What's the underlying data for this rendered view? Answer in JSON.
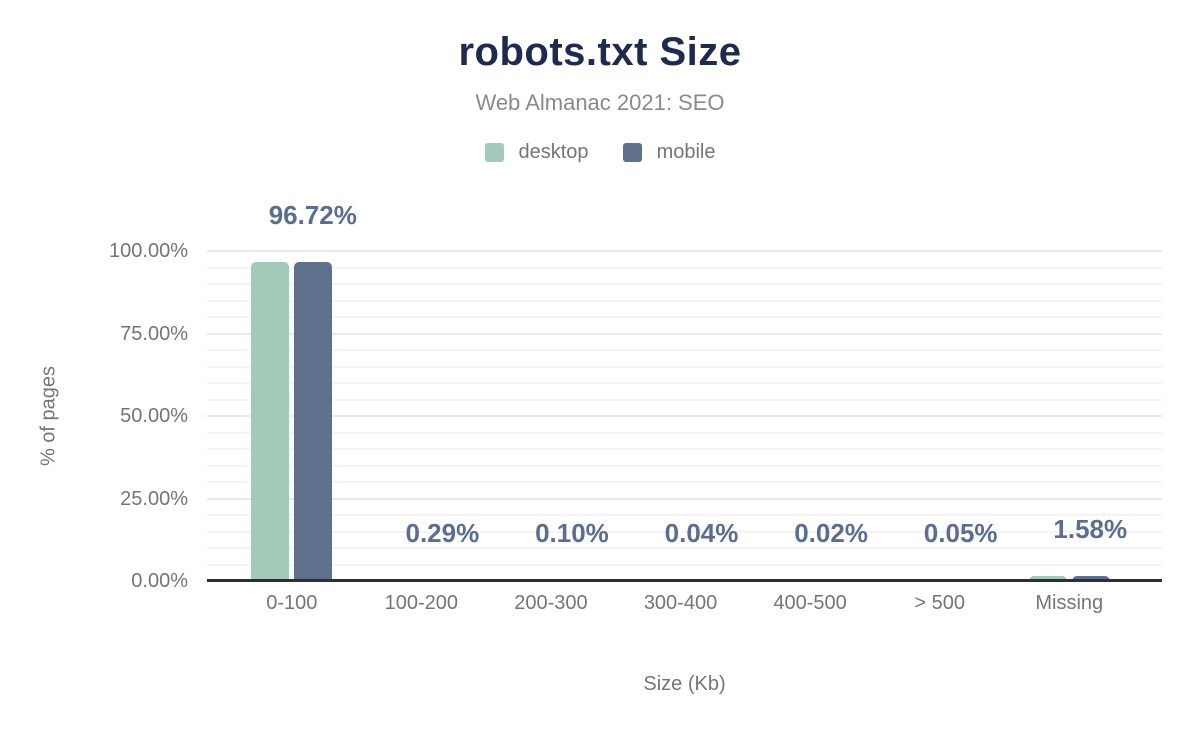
{
  "colors": {
    "title": "#1e2a4e",
    "subtitle_text": "#8a8a8a",
    "muted_text": "#757575",
    "annotation": "#5b6e8f",
    "axis_line": "#2f2f33",
    "grid_minor": "#f4f4f4",
    "grid_major": "#e9e9e9",
    "desktop": "#a4c9b8",
    "mobile": "#5f708c"
  },
  "chart_data": {
    "type": "bar",
    "title": "robots.txt Size",
    "subtitle": "Web Almanac 2021: SEO",
    "categories": [
      "0-100",
      "100-200",
      "200-300",
      "300-400",
      "400-500",
      "> 500",
      "Missing"
    ],
    "series": [
      {
        "name": "desktop",
        "color": "#a4c9b8",
        "values": [
          96.72,
          0.29,
          0.1,
          0.04,
          0.02,
          0.05,
          1.58
        ]
      },
      {
        "name": "mobile",
        "color": "#5f708c",
        "values": [
          96.72,
          0.29,
          0.1,
          0.04,
          0.02,
          0.05,
          1.58
        ]
      }
    ],
    "annotations": [
      "96.72%",
      "0.29%",
      "0.10%",
      "0.04%",
      "0.02%",
      "0.05%",
      "1.58%"
    ],
    "annotation_series": "mobile",
    "xlabel": "Size (Kb)",
    "ylabel": "% of pages",
    "ylim": [
      0,
      100
    ],
    "y_ticks": [
      {
        "label": "100.00%",
        "value": 100
      },
      {
        "label": "75.00%",
        "value": 75
      },
      {
        "label": "50.00%",
        "value": 50
      },
      {
        "label": "25.00%",
        "value": 25
      },
      {
        "label": "0.00%",
        "value": 0
      }
    ],
    "y_minor_step": 5,
    "y_major_step": 25,
    "grid": true,
    "legend_position": "top"
  }
}
